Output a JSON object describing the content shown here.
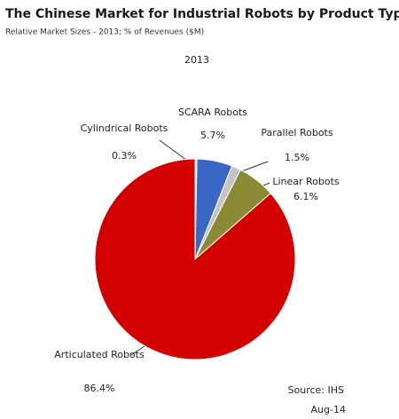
{
  "chart_data": {
    "type": "pie",
    "title": "The Chinese Market for Industrial Robots by Product Type",
    "subtitle": "Relative Market Sizes - 2013; % of Revenues ($M)",
    "chart_title": "2013",
    "categories": [
      "Cylindrical Robots",
      "SCARA Robots",
      "Parallel Robots",
      "Linear Robots",
      "Articulated Robots"
    ],
    "values": [
      0.3,
      5.7,
      1.5,
      6.1,
      86.4
    ],
    "value_labels": [
      "0.3%",
      "5.7%",
      "1.5%",
      "6.1%",
      "86.4%"
    ],
    "colors": [
      "#e8e8e8",
      "#3a66c8",
      "#c4c4c4",
      "#8a8a34",
      "#d40000"
    ],
    "source": "Source: IHS",
    "date": "Aug-14"
  }
}
